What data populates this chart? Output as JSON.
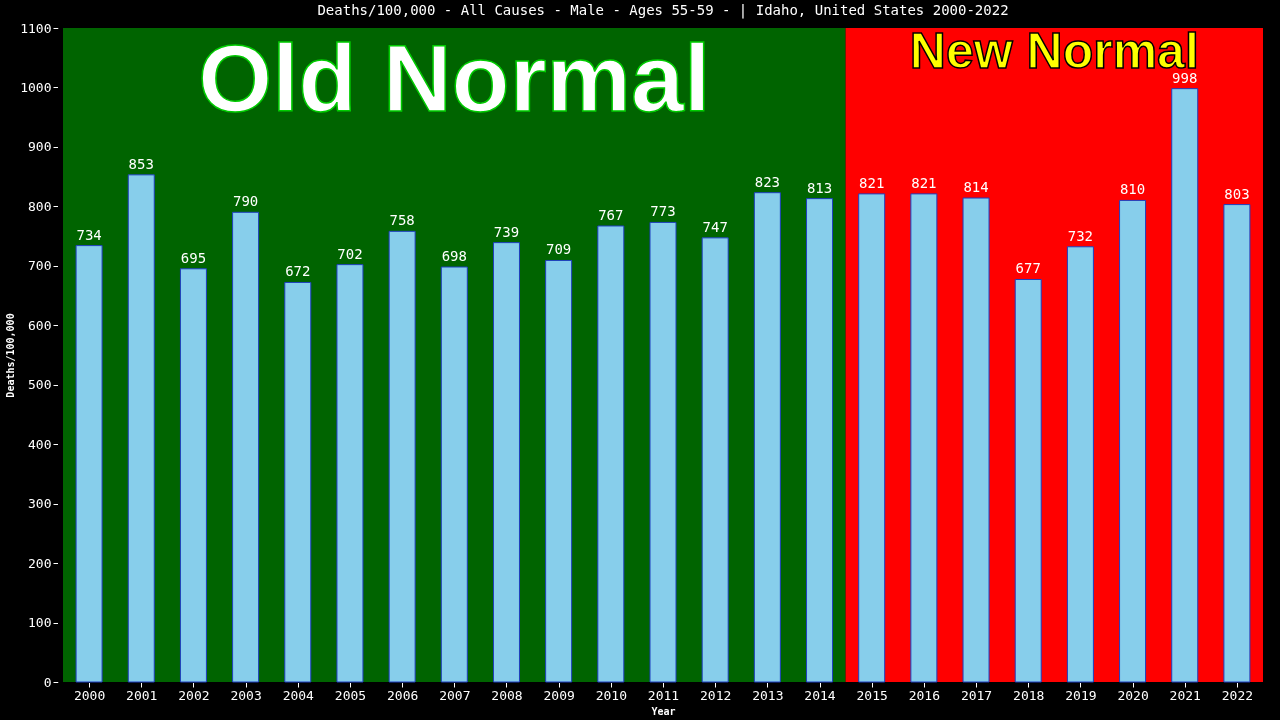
{
  "chart_data": {
    "type": "bar",
    "title": "Deaths/100,000 - All Causes - Male - Ages 55-59 -  | Idaho, United States 2000-2022",
    "xlabel": "Year",
    "ylabel": "Deaths/100,000",
    "categories": [
      "2000",
      "2001",
      "2002",
      "2003",
      "2004",
      "2005",
      "2006",
      "2007",
      "2008",
      "2009",
      "2010",
      "2011",
      "2012",
      "2013",
      "2014",
      "2015",
      "2016",
      "2017",
      "2018",
      "2019",
      "2020",
      "2021",
      "2022"
    ],
    "values": [
      734,
      853,
      695,
      790,
      672,
      702,
      758,
      698,
      739,
      709,
      767,
      773,
      747,
      823,
      813,
      821,
      821,
      814,
      677,
      732,
      810,
      998,
      803
    ],
    "color": "#87ceeb",
    "ylim": [
      0,
      1100
    ],
    "yticks": [
      0,
      100,
      200,
      300,
      400,
      500,
      600,
      700,
      800,
      900,
      1000,
      1100
    ],
    "data_labels": true,
    "grid": false,
    "bands": [
      {
        "axis": "x",
        "from": "2000",
        "to": "2014",
        "label": "Old Normal",
        "color": "#006400"
      },
      {
        "axis": "x",
        "from": "2015",
        "to": "2022",
        "label": "New Normal",
        "color": "#ff0000"
      }
    ]
  }
}
